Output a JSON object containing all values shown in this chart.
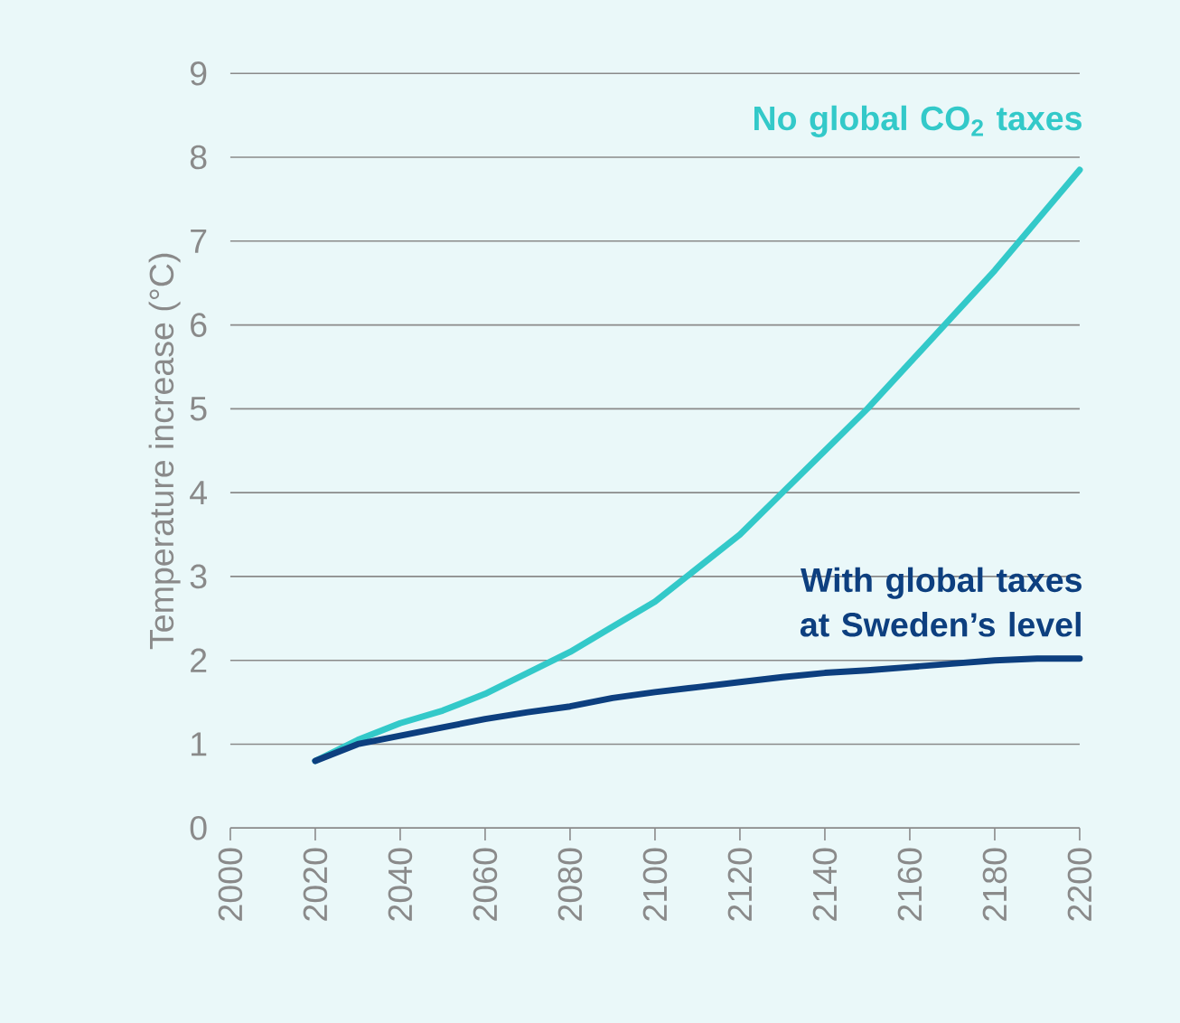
{
  "chart_data": {
    "type": "line",
    "ylabel": "Temperature increase (°C)",
    "x": [
      2020,
      2030,
      2040,
      2050,
      2060,
      2070,
      2080,
      2090,
      2100,
      2110,
      2120,
      2130,
      2140,
      2150,
      2160,
      2170,
      2180,
      2190,
      2200
    ],
    "series": [
      {
        "name": "No global CO$_{2}$ taxes",
        "color": "#33c9c9",
        "values": [
          0.8,
          1.05,
          1.25,
          1.4,
          1.6,
          1.85,
          2.1,
          2.4,
          2.7,
          3.1,
          3.5,
          4.0,
          4.5,
          5.0,
          5.55,
          6.1,
          6.65,
          7.25,
          7.85
        ]
      },
      {
        "name": "With global taxes at Sweden’s level",
        "color": "#0d3f7f",
        "values": [
          0.8,
          1.0,
          1.1,
          1.2,
          1.3,
          1.38,
          1.45,
          1.55,
          1.62,
          1.68,
          1.74,
          1.8,
          1.85,
          1.88,
          1.92,
          1.96,
          2.0,
          2.02,
          2.02
        ]
      }
    ],
    "xlim": [
      2000,
      2200
    ],
    "xticks": [
      2000,
      2020,
      2040,
      2060,
      2080,
      2100,
      2120,
      2140,
      2160,
      2180,
      2200
    ],
    "ylim": [
      0,
      9
    ],
    "yticks": [
      0,
      1,
      2,
      3,
      4,
      5,
      6,
      7,
      8,
      9
    ],
    "grid": "y",
    "legend": false,
    "marker": "none",
    "line_style": "solid"
  }
}
